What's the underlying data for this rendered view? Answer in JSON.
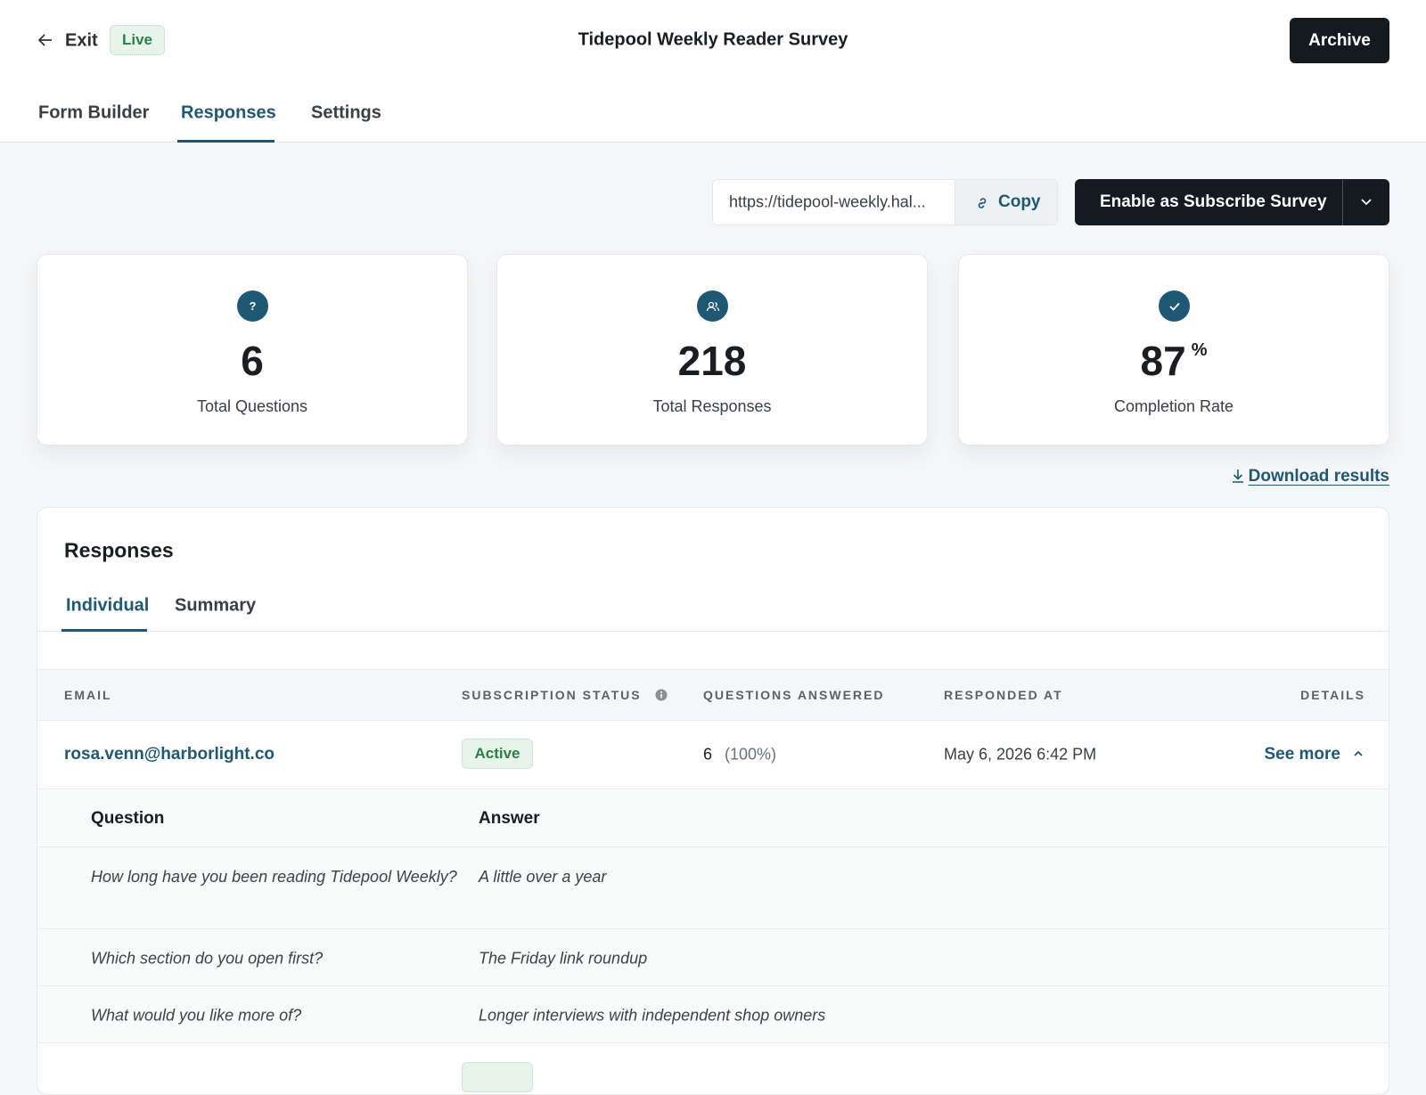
{
  "header": {
    "exit": "Exit",
    "status": "Live",
    "title": "Tidepool Weekly Reader Survey",
    "archive": "Archive"
  },
  "tabs": [
    "Form Builder",
    "Responses",
    "Settings"
  ],
  "share": {
    "url": "https://tidepool-weekly.hal...",
    "copy": "Copy",
    "enable": "Enable as Subscribe Survey"
  },
  "stats": [
    {
      "value": "6",
      "label": "Total Questions"
    },
    {
      "value": "218",
      "label": "Total Responses"
    },
    {
      "value": "87",
      "unit": "%",
      "label": "Completion Rate"
    }
  ],
  "download": "Download results",
  "panel": {
    "title": "Responses",
    "subtabs": [
      "Individual",
      "Summary"
    ],
    "columns": [
      "EMAIL",
      "SUBSCRIPTION STATUS",
      "QUESTIONS ANSWERED",
      "RESPONDED AT",
      "DETAILS"
    ],
    "rows": [
      {
        "email": "rosa.venn@harborlight.co",
        "status": "Active",
        "answered": "6",
        "percent": "(100%)",
        "responded_at": "May 6, 2026 6:42 PM",
        "details": "See more",
        "qa_header": [
          "Question",
          "Answer"
        ],
        "qa": [
          {
            "q": "How long have you been reading Tidepool Weekly?",
            "a": "A little over a year"
          },
          {
            "q": "Which section do you open first?",
            "a": "The Friday link roundup"
          },
          {
            "q": "What would you like more of?",
            "a": "Longer interviews with independent shop owners"
          }
        ]
      }
    ]
  }
}
